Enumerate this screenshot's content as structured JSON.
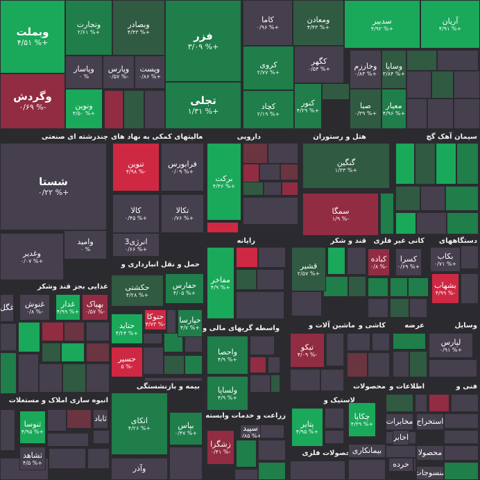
{
  "chart_data": {
    "type": "heatmap",
    "sectors": [
      "چندرشته ای صنعتی",
      "فعالیتهای کمکی به نهاد های",
      "دارویی",
      "هتل و رستوران",
      "سیمان آهک گچ",
      "رایانه",
      "قند و شکر",
      "کانی غیر فلزی",
      "دستگاههای",
      "غذایی بجز قند وشکر",
      "حمل و نقل انبارداری و",
      "واسطه گریهای مالی و",
      "ماشین آلات و",
      "کاشی و",
      "عرضه",
      "وسایل",
      "انبوه سازی املاک و مستغلات",
      "بیمه و بازنشستگی",
      "محصولات",
      "اطلاعات و",
      "فنی و",
      "لاستیک و",
      "زراعت و خدمات وابسته",
      "محصولات فلزی"
    ],
    "tiles": [
      {
        "name": "وبملت",
        "pct": "۴/۵۱ %+"
      },
      {
        "name": "وتجارت",
        "pct": "۲/۶۱ %+"
      },
      {
        "name": "وبصادر",
        "pct": "۴/۴۳ %+"
      },
      {
        "name": "فزر",
        "pct": "۳/۰۹ %+"
      },
      {
        "name": "کاما",
        "pct": "۰/۹۶ %+"
      },
      {
        "name": "ومعادن",
        "pct": "۴/۴۳ %+"
      },
      {
        "name": "سدبیر",
        "pct": "۴/۹۲ %+"
      },
      {
        "name": "آریان",
        "pct": "۴/۹۱ %+"
      },
      {
        "name": "وپاسار",
        "pct": "۰ %"
      },
      {
        "name": "وپارس",
        "pct": "۰/۵۷ %-"
      },
      {
        "name": "وپست",
        "pct": "۰/۸۶ %+"
      },
      {
        "name": "وگردش",
        "pct": "۰/۶۹ %-"
      },
      {
        "name": "ونوین",
        "pct": "۴/۵۰ %+"
      },
      {
        "name": "تجلی",
        "pct": "۱/۳۱ %+"
      },
      {
        "name": "کروی",
        "pct": "۲/۷۷ %+"
      },
      {
        "name": "کگهر",
        "pct": "۰/۵۴ %+"
      },
      {
        "name": "کچاد",
        "pct": "۲/۱۹ %+"
      },
      {
        "name": "کنور",
        "pct": "۴/۲۹ %+"
      },
      {
        "name": "وخارزم",
        "pct": "۰/۸۳ %+"
      },
      {
        "name": "وساپا",
        "pct": "۳/۸۴ %+"
      },
      {
        "name": "صبا",
        "pct": "۰/۳۹ %+"
      },
      {
        "name": "معیار",
        "pct": "۴/۹۶ %+"
      },
      {
        "name": "شستا",
        "pct": "۰/۲۲ %+"
      },
      {
        "name": "وامید",
        "pct": "۰ %"
      },
      {
        "name": "وغدیر",
        "pct": "۰/۰۷ %+"
      },
      {
        "name": "تنوین",
        "pct": "۴/۹۸ %-"
      },
      {
        "name": "فرابورس",
        "pct": "۰/۰۹ %+"
      },
      {
        "name": "کالا",
        "pct": "۰/۴۵ %+"
      },
      {
        "name": "تکالا",
        "pct": "۰/۷۶ %+"
      },
      {
        "name": "انرژی3",
        "pct": "۰/۶۶ %+"
      },
      {
        "name": "برکت",
        "pct": "۴/۴۶ %+"
      },
      {
        "name": "گنگین",
        "pct": "۱/۳۳ %+"
      },
      {
        "name": "سمگا",
        "pct": "۱/۹ %-"
      },
      {
        "name": "مفاخر",
        "pct": "۴/۹ %+"
      },
      {
        "name": "قشیر",
        "pct": "۲/۵۷ %+"
      },
      {
        "name": "کباده",
        "pct": "۰/۸ %-"
      },
      {
        "name": "کسرا",
        "pct": "۰/۶۹ %+"
      },
      {
        "name": "بکاب",
        "pct": "۰/۷۱ %+"
      },
      {
        "name": "بشهاب",
        "pct": "۴/۹۹ %-"
      },
      {
        "name": "غگل",
        "pct": ""
      },
      {
        "name": "غنوش",
        "pct": "۰/۸ %-"
      },
      {
        "name": "غدار",
        "pct": "۴/۹۹ %+"
      },
      {
        "name": "بهپاک",
        "pct": "۰/۵۷ %-"
      },
      {
        "name": "حکشتی",
        "pct": "۴/۲۸ %+"
      },
      {
        "name": "حفارس",
        "pct": "۴/۰۵ %+"
      },
      {
        "name": "حتوکا",
        "pct": "۴/۷۳ %-"
      },
      {
        "name": "حتاید",
        "pct": "۴/۲۴ %+"
      },
      {
        "name": "حپارسا",
        "pct": "۴/۷ %+"
      },
      {
        "name": "حسیر",
        "pct": "۵ %-"
      },
      {
        "name": "واحصا",
        "pct": "۴/۹ %+"
      },
      {
        "name": "ولساپا",
        "pct": "۴/۹ %+"
      },
      {
        "name": "تیکو",
        "pct": "۴/۰۹ %-"
      },
      {
        "name": "لپارس",
        "pct": "۰/۹۱ %+"
      },
      {
        "name": "ثنوسا",
        "pct": "۴/۹۵ %+"
      },
      {
        "name": "ثاباد",
        "pct": ""
      },
      {
        "name": "ثشاهد",
        "pct": "۴/۵ %+"
      },
      {
        "name": "اتکای",
        "pct": "۴/۲۶ %+"
      },
      {
        "name": "بپاس",
        "pct": "۰/۴۷ %+"
      },
      {
        "name": "وآذر",
        "pct": ""
      },
      {
        "name": "چکاپا",
        "pct": "۴/۳۹ %+"
      },
      {
        "name": "مخابرات",
        "pct": ""
      },
      {
        "name": "اخابر",
        "pct": ""
      },
      {
        "name": "استخراج",
        "pct": ""
      },
      {
        "name": "پتایر",
        "pct": "۴/۹۵ %+"
      },
      {
        "name": "زشگزا",
        "pct": "۰/۴۱ %-"
      },
      {
        "name": "سپید",
        "pct": "۰/۸۵ %+"
      },
      {
        "name": "بیمانکاری",
        "pct": ""
      },
      {
        "name": "محصولا",
        "pct": ""
      },
      {
        "name": "خرده",
        "pct": ""
      },
      {
        "name": "منسوجات",
        "pct": ""
      }
    ],
    "colors": {
      "up_strong": "#1aa85a",
      "up_mid": "#1f7e4a",
      "up_weak": "#305a42",
      "flat": "#463f4e",
      "down_weak": "#6a3440",
      "down_mid": "#922c42",
      "down_strong": "#cf2843",
      "header_bg": "#2b2b2f"
    }
  }
}
